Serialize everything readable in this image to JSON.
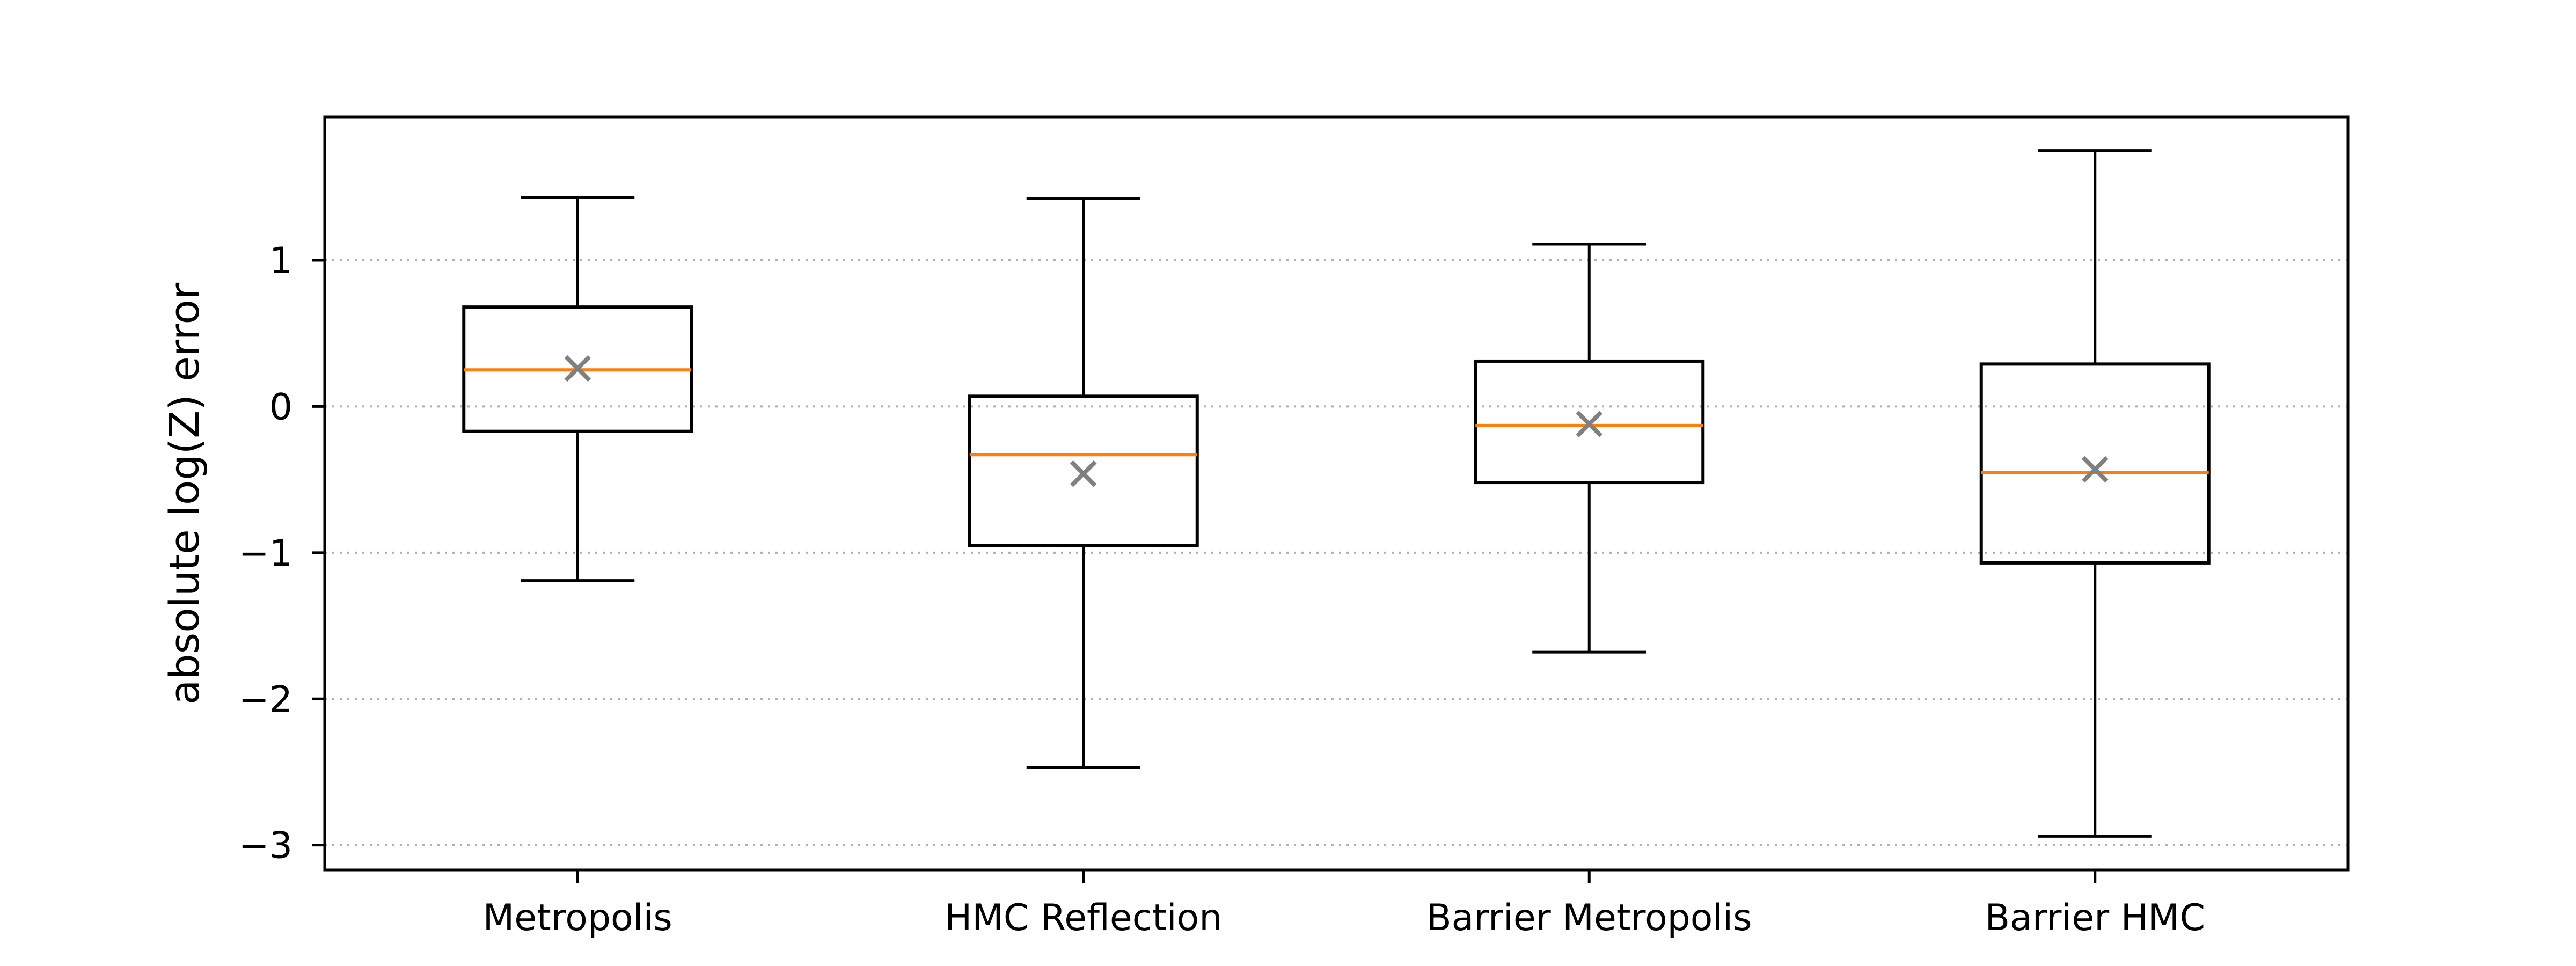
{
  "chart_data": {
    "type": "boxplot",
    "categories": [
      "Metropolis",
      "HMC Reflection",
      "Barrier Metropolis",
      "Barrier HMC"
    ],
    "boxes": [
      {
        "whisker_low": -1.19,
        "q1": -0.17,
        "median": 0.25,
        "q3": 0.68,
        "whisker_high": 1.43,
        "mean": 0.26
      },
      {
        "whisker_low": -2.47,
        "q1": -0.95,
        "median": -0.33,
        "q3": 0.07,
        "whisker_high": 1.42,
        "mean": -0.46
      },
      {
        "whisker_low": -1.68,
        "q1": -0.52,
        "median": -0.13,
        "q3": 0.31,
        "whisker_high": 1.11,
        "mean": -0.12
      },
      {
        "whisker_low": -2.94,
        "q1": -1.07,
        "median": -0.45,
        "q3": 0.29,
        "whisker_high": 1.75,
        "mean": -0.43
      }
    ],
    "title": "",
    "xlabel": "",
    "ylabel": "absolute log(Z) error",
    "ylim": [
      -3.17,
      1.98
    ],
    "yticks": [
      1,
      0,
      -1,
      -2,
      -3
    ],
    "ytick_labels": [
      "1",
      "0",
      "−1",
      "−2",
      "−3"
    ],
    "grid": {
      "axis": "y",
      "style": "dotted"
    },
    "colors": {
      "box": "#000000",
      "median": "#ff7f0e",
      "mean_marker": "#808080",
      "grid": "#b0b0b0"
    },
    "mean_marker": "x"
  }
}
